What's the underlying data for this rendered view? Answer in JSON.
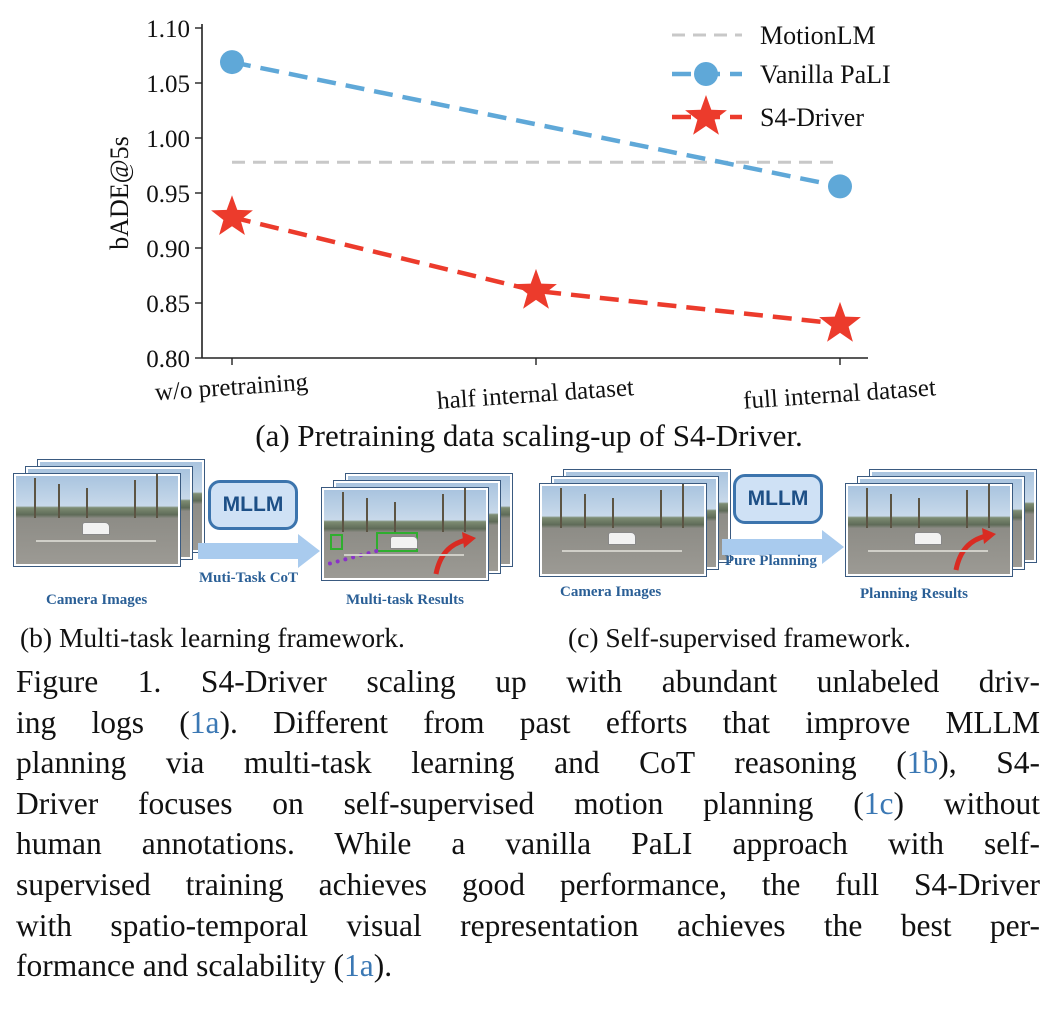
{
  "chart_data": {
    "type": "line",
    "ylabel": "bADE@5s",
    "ylim": [
      0.8,
      1.1
    ],
    "yticks": [
      "1.10",
      "1.05",
      "1.00",
      "0.95",
      "0.90",
      "0.85",
      "0.80"
    ],
    "ytick_values": [
      1.1,
      1.05,
      1.0,
      0.95,
      0.9,
      0.85,
      0.8
    ],
    "categories": [
      "w/o pretraining",
      "half internal dataset",
      "full internal dataset"
    ],
    "legend_position": "top-right",
    "series": [
      {
        "name": "MotionLM",
        "style": "dashed-line",
        "color": "#c8c8c8",
        "values": [
          0.978,
          0.978,
          0.978
        ]
      },
      {
        "name": "Vanilla PaLI",
        "style": "dashed-circle",
        "color": "#5fa8d8",
        "values": [
          1.069,
          null,
          0.956
        ]
      },
      {
        "name": "S4-Driver",
        "style": "dashed-star",
        "color": "#ec3b2c",
        "values": [
          0.928,
          0.861,
          0.831
        ]
      }
    ],
    "caption": "(a) Pretraining data scaling-up of S4-Driver."
  },
  "panel_b": {
    "input_label": "Camera Images",
    "model_label": "MLLM",
    "arrow_label": "Muti-Task CoT",
    "output_label": "Multi-task Results",
    "caption": "(b) Multi-task learning framework."
  },
  "panel_c": {
    "input_label": "Camera Images",
    "model_label": "MLLM",
    "arrow_label": "Pure Planning",
    "output_label": "Planning Results",
    "caption": "(c) Self-supervised framework."
  },
  "figure_caption": {
    "lines": [
      [
        "Figure 1.  S4-Driver scaling up with abundant unlabeled driv-"
      ],
      [
        "ing logs (",
        "1a",
        ").  Different from past efforts that improve MLLM"
      ],
      [
        "planning via multi-task learning and CoT reasoning (",
        "1b",
        "), S4-"
      ],
      [
        "Driver focuses on self-supervised motion planning (",
        "1c",
        ") without"
      ],
      [
        "human annotations.  While a vanilla PaLI approach with self-"
      ],
      [
        "supervised training achieves good performance, the full S4-Driver"
      ],
      [
        "with spatio-temporal visual representation achieves the best per-"
      ],
      [
        "formance and scalability (",
        "1a",
        ")."
      ]
    ]
  },
  "colors": {
    "motionlm": "#c8c8c8",
    "vanilla_pali": "#5fa8d8",
    "s4_driver": "#ec3b2c",
    "ref_link": "#3b78b4",
    "diagram_blue": "#2a5f96"
  }
}
